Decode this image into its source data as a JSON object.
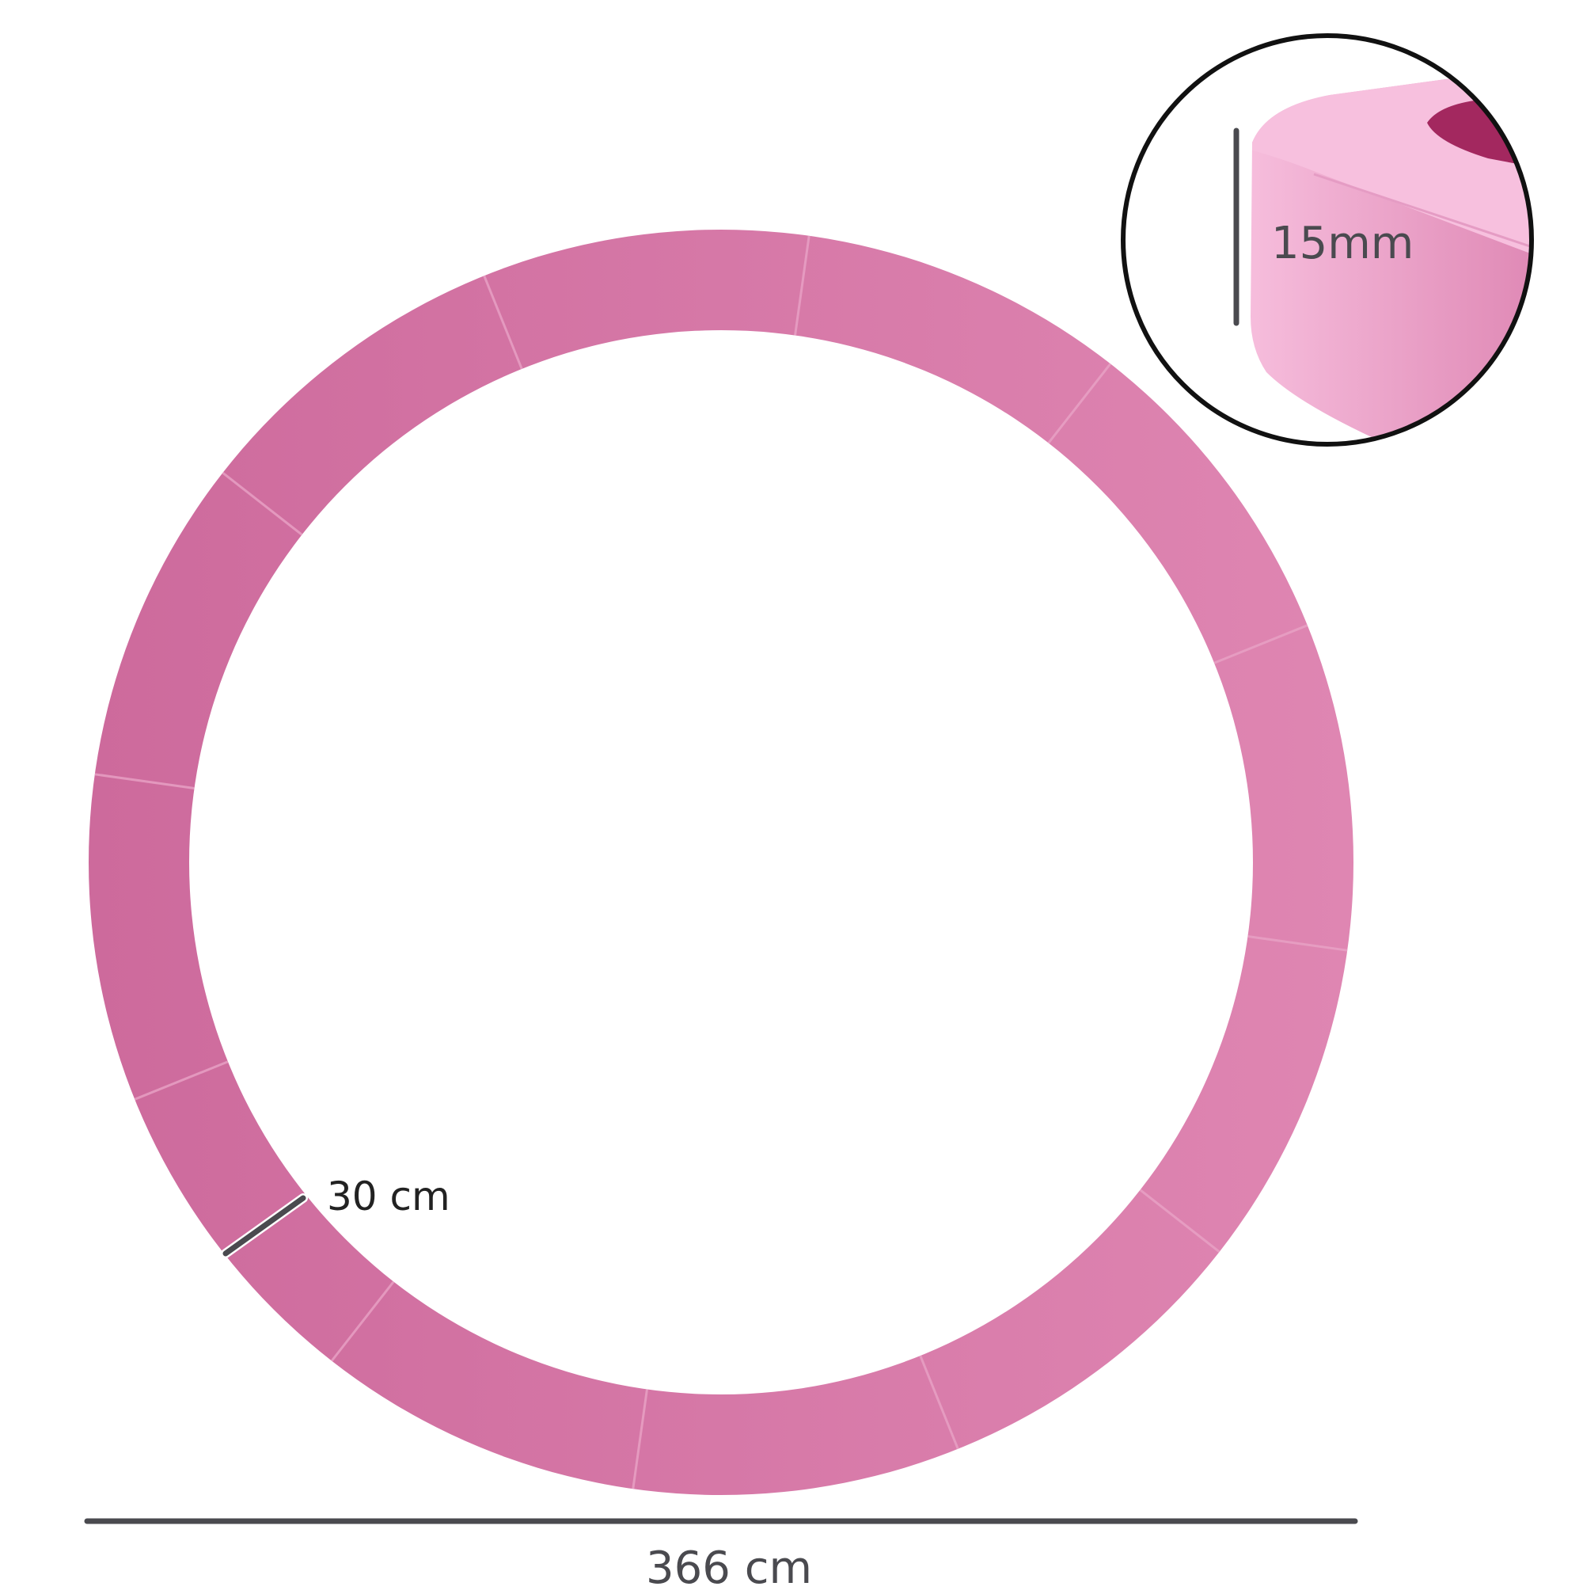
{
  "product": {
    "color_main": "#d473a4",
    "color_light": "#f6b9da",
    "color_dark": "#a3285f"
  },
  "dimensions": {
    "diameter_label": "366 cm",
    "width_label": "30 cm",
    "thickness_label": "15mm"
  }
}
